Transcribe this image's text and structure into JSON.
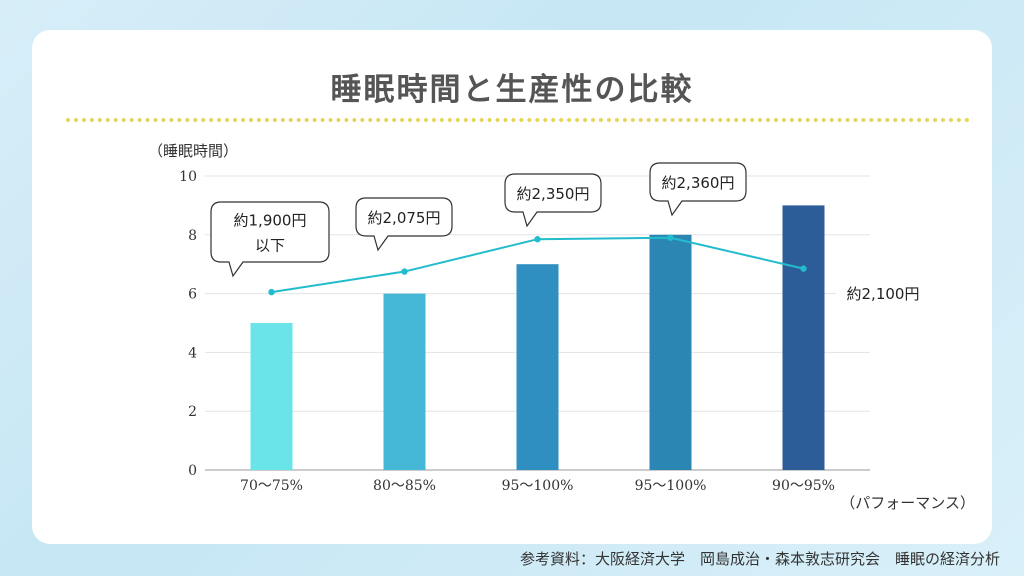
{
  "header": {
    "title": "睡眠時間と生産性の比較"
  },
  "footer": {
    "source": "参考資料：大阪経済大学　岡島成治・森本敦志研究会　睡眠の経済分析"
  },
  "chart_data": {
    "type": "bar",
    "categories": [
      "70～75%",
      "80～85%",
      "95～100%",
      "95～100%",
      "90～95%"
    ],
    "series": [
      {
        "type": "bar",
        "values": [
          5,
          6,
          7,
          8,
          9
        ],
        "colors": [
          "#6ae4e8",
          "#44b8d6",
          "#2e8fc0",
          "#2b86b4",
          "#2c5d98"
        ]
      },
      {
        "type": "line",
        "values": [
          6.05,
          6.75,
          7.85,
          7.9,
          6.85
        ],
        "color": "#22bccc"
      }
    ],
    "data_labels": [
      [
        "約1,900円",
        "以下"
      ],
      [
        "約2,075円"
      ],
      [
        "約2,350円"
      ],
      [
        "約2,360円"
      ],
      [
        "約2,100円"
      ]
    ],
    "ylabel": "（睡眠時間）",
    "xlabel": "（パフォーマンス）",
    "ylim": [
      0,
      10
    ],
    "yticks": [
      "0",
      "2",
      "4",
      "6",
      "8",
      "10"
    ],
    "grid": true
  }
}
